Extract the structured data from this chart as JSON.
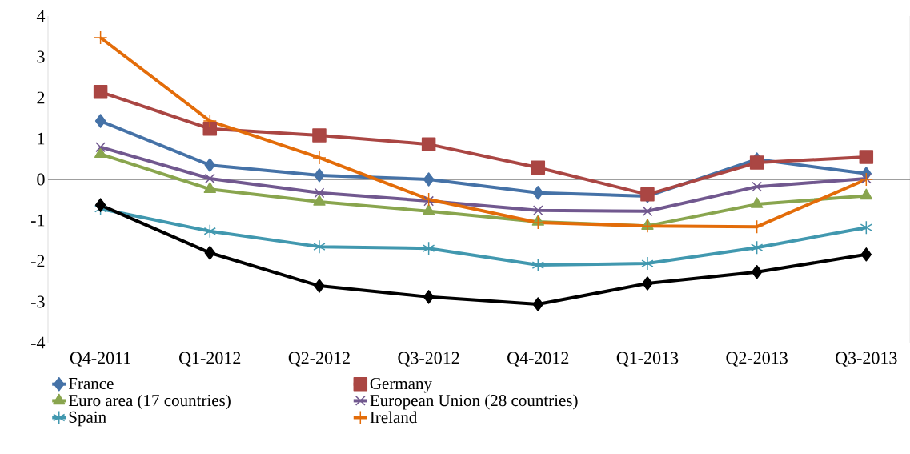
{
  "chart_data": {
    "type": "line",
    "categories": [
      "Q4-2011",
      "Q1-2012",
      "Q2-2012",
      "Q3-2012",
      "Q4-2012",
      "Q1-2013",
      "Q2-2013",
      "Q3-2013"
    ],
    "ylim": [
      -4,
      4
    ],
    "yticks": [
      -4,
      -3,
      -2,
      -1,
      0,
      1,
      2,
      3,
      4
    ],
    "legend": "bottom",
    "line_style": "solid",
    "series": [
      {
        "name": "France",
        "color": "#4572a7",
        "marker": "diamond",
        "values": [
          1.43,
          0.35,
          0.1,
          0.0,
          -0.33,
          -0.41,
          0.49,
          0.14
        ]
      },
      {
        "name": "Germany",
        "color": "#aa4643",
        "marker": "square",
        "values": [
          2.14,
          1.24,
          1.08,
          0.86,
          0.29,
          -0.37,
          0.41,
          0.55
        ]
      },
      {
        "name": "Euro area (17 countries)",
        "color": "#89a54e",
        "marker": "triangle",
        "values": [
          0.62,
          -0.24,
          -0.55,
          -0.78,
          -1.04,
          -1.14,
          -0.61,
          -0.4
        ]
      },
      {
        "name": "European Union (28 countries)",
        "color": "#71588f",
        "marker": "cross",
        "values": [
          0.79,
          0.02,
          -0.33,
          -0.53,
          -0.76,
          -0.78,
          -0.18,
          0.02
        ]
      },
      {
        "name": "Spain",
        "color": "#4198af",
        "marker": "cross",
        "values": [
          -0.72,
          -1.27,
          -1.65,
          -1.69,
          -2.1,
          -2.06,
          -1.67,
          -1.18
        ]
      },
      {
        "name": "Ireland",
        "color": "#e36c09",
        "marker": "plus",
        "values": [
          3.47,
          1.43,
          0.53,
          -0.49,
          -1.06,
          -1.14,
          -1.16,
          0.0
        ]
      },
      {
        "color": "#000000",
        "marker": "diamond",
        "values": [
          -0.63,
          -1.8,
          -2.61,
          -2.88,
          -3.06,
          -2.55,
          -2.27,
          -1.84
        ]
      }
    ]
  }
}
